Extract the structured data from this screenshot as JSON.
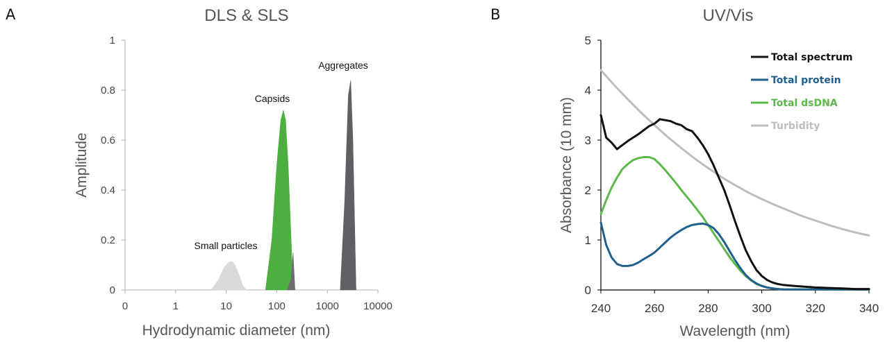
{
  "chart_data": [
    {
      "panel": "A",
      "type": "area",
      "title": "DLS & SLS",
      "xlabel": "Hydrodynamic diameter (nm)",
      "ylabel": "Amplitude",
      "xscale": "log",
      "xticks": [
        "0",
        "1",
        "10",
        "100",
        "1000",
        "10000"
      ],
      "yticks": [
        "0",
        "0.2",
        "0.4",
        "0.6",
        "0.8",
        "1"
      ],
      "ylim": [
        0,
        1
      ],
      "grid": false,
      "series": [
        {
          "name": "Small particles",
          "color": "#d9d9d9",
          "x": [
            5,
            7,
            9,
            11,
            13,
            15,
            18,
            21,
            25
          ],
          "values": [
            0.0,
            0.04,
            0.09,
            0.11,
            0.115,
            0.1,
            0.06,
            0.02,
            0.0
          ]
        },
        {
          "name": "Capsids",
          "color": "#4caf3f",
          "x": [
            60,
            80,
            100,
            120,
            135,
            150,
            170,
            200,
            220
          ],
          "values": [
            0.0,
            0.2,
            0.5,
            0.68,
            0.72,
            0.68,
            0.48,
            0.12,
            0.0
          ]
        },
        {
          "name": "",
          "color": "#6e6e70",
          "x": [
            160,
            190,
            210,
            230
          ],
          "values": [
            0.0,
            0.04,
            0.15,
            0.0
          ]
        },
        {
          "name": "Aggregates",
          "color": "#5f6063",
          "x": [
            1800,
            2200,
            2600,
            2900,
            3200,
            3700
          ],
          "values": [
            0.0,
            0.35,
            0.78,
            0.84,
            0.6,
            0.0
          ]
        }
      ],
      "annotations": [
        "Small particles",
        "Capsids",
        "Aggregates"
      ]
    },
    {
      "panel": "B",
      "type": "line",
      "title": "UV/Vis",
      "xlabel": "Wavelength (nm)",
      "ylabel": "Absorbance (10 mm)",
      "xlim": [
        240,
        340
      ],
      "ylim": [
        0,
        5
      ],
      "xticks": [
        "240",
        "260",
        "280",
        "300",
        "320",
        "340"
      ],
      "yticks": [
        "0",
        "1",
        "2",
        "3",
        "4",
        "5"
      ],
      "grid": false,
      "legend_position": "top-right",
      "series": [
        {
          "name": "Total spectrum",
          "color": "#111111",
          "x": [
            240,
            242,
            244,
            246,
            248,
            250,
            252,
            254,
            256,
            258,
            260,
            262,
            264,
            266,
            268,
            270,
            272,
            274,
            276,
            278,
            280,
            282,
            284,
            286,
            288,
            290,
            292,
            294,
            296,
            298,
            300,
            302,
            304,
            306,
            308,
            310,
            315,
            320,
            325,
            330,
            335,
            340
          ],
          "values": [
            3.5,
            3.05,
            2.95,
            2.82,
            2.9,
            2.98,
            3.05,
            3.12,
            3.2,
            3.28,
            3.33,
            3.42,
            3.4,
            3.38,
            3.33,
            3.3,
            3.22,
            3.18,
            3.05,
            2.9,
            2.72,
            2.5,
            2.25,
            2.0,
            1.7,
            1.38,
            1.08,
            0.8,
            0.58,
            0.4,
            0.28,
            0.2,
            0.15,
            0.12,
            0.1,
            0.09,
            0.07,
            0.05,
            0.04,
            0.03,
            0.02,
            0.02
          ]
        },
        {
          "name": "Total protein",
          "color": "#1f5f8b",
          "x": [
            240,
            242,
            244,
            246,
            248,
            250,
            252,
            254,
            256,
            258,
            260,
            262,
            264,
            266,
            268,
            270,
            272,
            274,
            276,
            278,
            280,
            282,
            284,
            286,
            288,
            290,
            292,
            294,
            296,
            298,
            300,
            302,
            304,
            306,
            308,
            310,
            315,
            320,
            330,
            340
          ],
          "values": [
            1.35,
            0.9,
            0.65,
            0.52,
            0.48,
            0.48,
            0.5,
            0.55,
            0.62,
            0.68,
            0.75,
            0.85,
            0.95,
            1.05,
            1.13,
            1.2,
            1.26,
            1.3,
            1.32,
            1.33,
            1.3,
            1.24,
            1.12,
            0.96,
            0.78,
            0.6,
            0.44,
            0.3,
            0.2,
            0.13,
            0.08,
            0.05,
            0.03,
            0.02,
            0.01,
            0.01,
            0.01,
            0.01,
            0.01,
            0.01
          ]
        },
        {
          "name": "Total dsDNA",
          "color": "#5cb84a",
          "x": [
            240,
            242,
            244,
            246,
            248,
            250,
            252,
            254,
            256,
            258,
            260,
            262,
            264,
            266,
            268,
            270,
            272,
            274,
            276,
            278,
            280,
            282,
            284,
            286,
            288,
            290,
            292,
            294,
            296,
            298,
            300,
            302,
            304,
            306,
            308,
            310,
            315,
            320,
            330,
            340
          ],
          "values": [
            1.52,
            1.8,
            2.05,
            2.25,
            2.42,
            2.52,
            2.6,
            2.64,
            2.66,
            2.66,
            2.62,
            2.52,
            2.4,
            2.27,
            2.14,
            2.0,
            1.87,
            1.74,
            1.6,
            1.46,
            1.3,
            1.14,
            0.98,
            0.82,
            0.66,
            0.52,
            0.39,
            0.28,
            0.19,
            0.12,
            0.08,
            0.05,
            0.03,
            0.02,
            0.01,
            0.01,
            0.01,
            0.01,
            0.01,
            0.01
          ]
        },
        {
          "name": "Turbidity",
          "color": "#bdbdbd",
          "x": [
            240,
            245,
            250,
            255,
            260,
            265,
            270,
            275,
            280,
            285,
            290,
            295,
            300,
            305,
            310,
            315,
            320,
            325,
            330,
            335,
            340
          ],
          "values": [
            4.4,
            4.1,
            3.82,
            3.55,
            3.3,
            3.06,
            2.84,
            2.63,
            2.44,
            2.26,
            2.1,
            1.95,
            1.82,
            1.7,
            1.59,
            1.48,
            1.39,
            1.3,
            1.22,
            1.15,
            1.09
          ]
        }
      ]
    }
  ]
}
